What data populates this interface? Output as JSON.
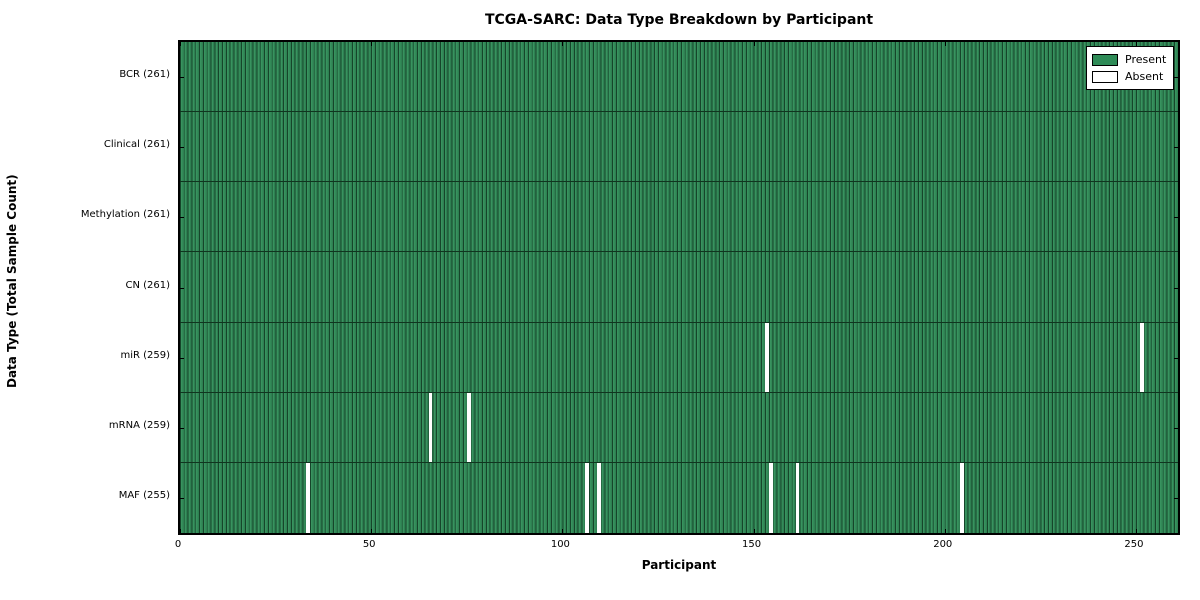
{
  "chart_data": {
    "type": "heatmap",
    "title": "TCGA-SARC: Data Type Breakdown by Participant",
    "xlabel": "Participant",
    "ylabel": "Data Type (Total Sample Count)",
    "x_ticks": [
      0,
      50,
      100,
      150,
      200,
      250
    ],
    "xlim": [
      0,
      261
    ],
    "n_participants": 261,
    "grid": false,
    "legend_position": "upper right",
    "rows": [
      {
        "label": "BCR (261)",
        "data_type": "BCR",
        "total_sample_count": 261,
        "absent_participants": []
      },
      {
        "label": "Clinical (261)",
        "data_type": "Clinical",
        "total_sample_count": 261,
        "absent_participants": []
      },
      {
        "label": "Methylation (261)",
        "data_type": "Methylation",
        "total_sample_count": 261,
        "absent_participants": []
      },
      {
        "label": "CN (261)",
        "data_type": "CN",
        "total_sample_count": 261,
        "absent_participants": []
      },
      {
        "label": "miR (259)",
        "data_type": "miR",
        "total_sample_count": 259,
        "absent_participants": [
          153,
          251
        ]
      },
      {
        "label": "mRNA (259)",
        "data_type": "mRNA",
        "total_sample_count": 259,
        "absent_participants": [
          65,
          75
        ]
      },
      {
        "label": "MAF (255)",
        "data_type": "MAF",
        "total_sample_count": 255,
        "absent_participants": [
          33,
          106,
          109,
          154,
          161,
          204
        ]
      }
    ],
    "legend": [
      {
        "label": "Present",
        "color": "#2E8B57"
      },
      {
        "label": "Absent",
        "color": "#FFFFFF"
      }
    ],
    "colors": {
      "present_fill": "#38935F",
      "present_fill_shade": "#2E8052",
      "bar_edge": "#16452A",
      "absent_fill": "#FFFFFF",
      "axis": "#000000"
    }
  }
}
